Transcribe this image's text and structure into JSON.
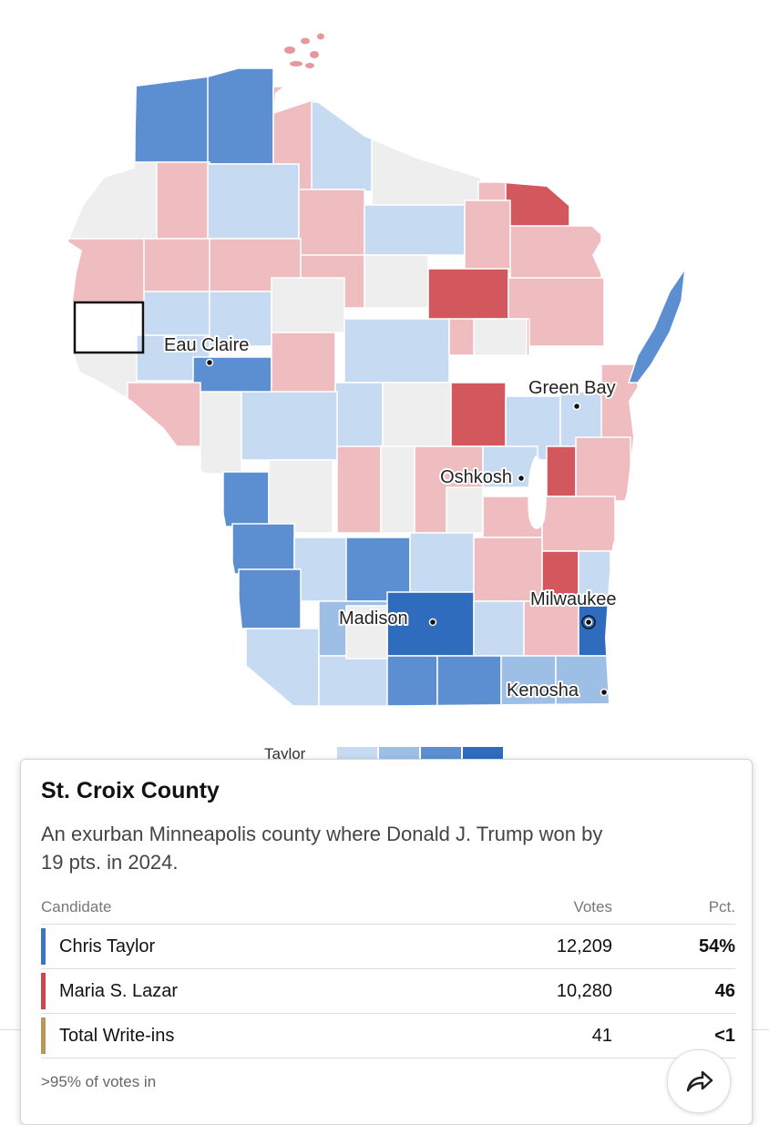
{
  "colors": {
    "taylor_light": "#c6dbf2",
    "taylor_mid": "#9dbfe6",
    "taylor_dark": "#5b8fd1",
    "taylor_darkest": "#2f6cbd",
    "lazar_light": "#efbcbf",
    "lazar_mid": "#e6989c",
    "lazar_dark": "#d3585e",
    "neutral": "#eeeeee",
    "writein": "#b8975a"
  },
  "map": {
    "cities": [
      "Eau Claire",
      "Green Bay",
      "Oshkosh",
      "Madison",
      "Milwaukee",
      "Kenosha"
    ]
  },
  "legend": {
    "label": "Taylor"
  },
  "popup": {
    "county": "St. Croix County",
    "description": "An exurban Minneapolis county where Donald J. Trump won by 19 pts. in 2024.",
    "columns": {
      "candidate": "Candidate",
      "votes": "Votes",
      "pct": "Pct."
    },
    "rows": [
      {
        "name": "Chris Taylor",
        "votes": "12,209",
        "pct": "54%"
      },
      {
        "name": "Maria S. Lazar",
        "votes": "10,280",
        "pct": "46"
      },
      {
        "name": "Total Write-ins",
        "votes": "41",
        "pct": "<1"
      }
    ],
    "status": ">95% of votes in"
  },
  "share": {
    "icon": "share-arrow-icon"
  }
}
